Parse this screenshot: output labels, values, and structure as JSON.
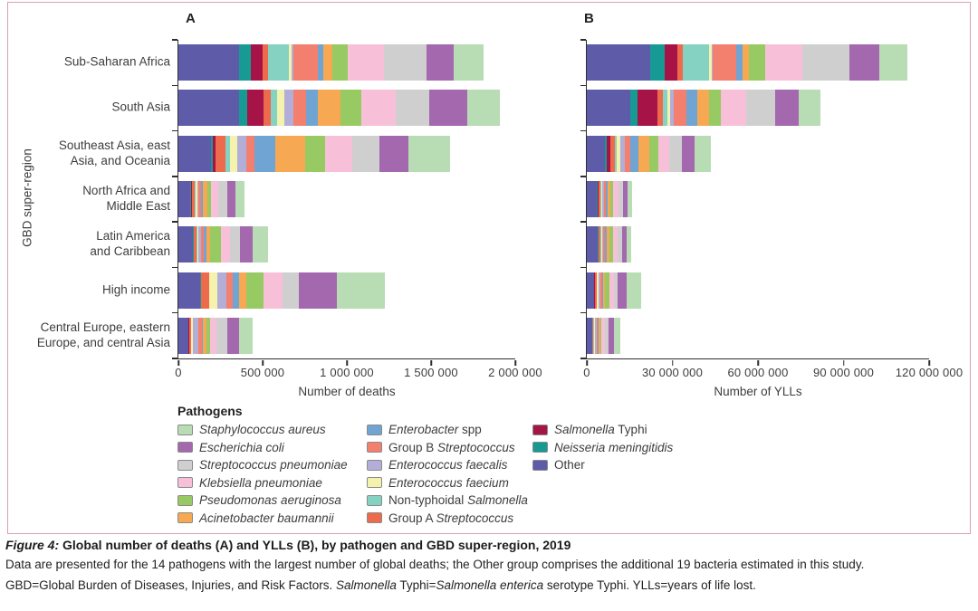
{
  "figure": {
    "panels": {
      "a_label": "A",
      "b_label": "B"
    },
    "y_axis_title": "GBD super-region",
    "legend_title": "Pathogens"
  },
  "caption": {
    "label": "Figure 4:",
    "title": " Global number of deaths (A) and YLLs (B), by pathogen and GBD super-region, 2019",
    "line2": "Data are presented for the 14 pathogens with the largest number of global deaths; the Other group comprises the additional 19 bacteria estimated in this study.",
    "line3_parts": [
      {
        "t": "GBD=Global Burden of Diseases, Injuries, and Risk Factors. ",
        "i": false
      },
      {
        "t": "Salmonella",
        "i": true
      },
      {
        "t": " Typhi=",
        "i": false
      },
      {
        "t": "Salmonella enterica",
        "i": true
      },
      {
        "t": " serotype Typhi. YLLs=years of life lost.",
        "i": false
      }
    ]
  },
  "legend": {
    "position": "bottom",
    "columns": [
      [
        {
          "parts": [
            {
              "t": "Staphylococcus aureus",
              "i": true
            }
          ],
          "color": "#b8dcb4"
        },
        {
          "parts": [
            {
              "t": "Escherichia coli",
              "i": true
            }
          ],
          "color": "#a468af"
        },
        {
          "parts": [
            {
              "t": "Streptococcus pneumoniae",
              "i": true
            }
          ],
          "color": "#cfcfcf"
        },
        {
          "parts": [
            {
              "t": "Klebsiella pneumoniae",
              "i": true
            }
          ],
          "color": "#f8c0d8"
        },
        {
          "parts": [
            {
              "t": "Pseudomonas aeruginosa",
              "i": true
            }
          ],
          "color": "#97ca62"
        },
        {
          "parts": [
            {
              "t": "Acinetobacter baumannii",
              "i": true
            }
          ],
          "color": "#f6a952"
        }
      ],
      [
        {
          "parts": [
            {
              "t": "Enterobacter",
              "i": true
            },
            {
              "t": " spp",
              "i": false
            }
          ],
          "color": "#70a4d2"
        },
        {
          "parts": [
            {
              "t": "Group B ",
              "i": false
            },
            {
              "t": "Streptococcus",
              "i": true
            }
          ],
          "color": "#f3806e"
        },
        {
          "parts": [
            {
              "t": "Enterococcus faecalis",
              "i": true
            }
          ],
          "color": "#b2aed8"
        },
        {
          "parts": [
            {
              "t": "Enterococcus faecium",
              "i": true
            }
          ],
          "color": "#f4f2ac"
        },
        {
          "parts": [
            {
              "t": "Non-typhoidal ",
              "i": false
            },
            {
              "t": "Salmonella",
              "i": true
            }
          ],
          "color": "#85d2c3"
        },
        {
          "parts": [
            {
              "t": "Group A ",
              "i": false
            },
            {
              "t": "Streptococcus",
              "i": true
            }
          ],
          "color": "#ee6a4d"
        }
      ],
      [
        {
          "parts": [
            {
              "t": "Salmonella",
              "i": true
            },
            {
              "t": " Typhi",
              "i": false
            }
          ],
          "color": "#a61347"
        },
        {
          "parts": [
            {
              "t": "Neisseria meningitidis",
              "i": true
            }
          ],
          "color": "#189a94"
        },
        {
          "parts": [
            {
              "t": "Other",
              "i": false
            }
          ],
          "color": "#5e5ba8"
        }
      ]
    ]
  },
  "chart_data": [
    {
      "type": "bar",
      "stacked": true,
      "orientation": "horizontal",
      "title": "A",
      "xlabel": "Number of deaths",
      "ylabel": "GBD super-region",
      "xlim": [
        0,
        2000000
      ],
      "grid": false,
      "xticks": [
        {
          "value": 0,
          "label": "0"
        },
        {
          "value": 500000,
          "label": "500 000"
        },
        {
          "value": 1000000,
          "label": "1 000 000"
        },
        {
          "value": 1500000,
          "label": "1 500 000"
        },
        {
          "value": 2000000,
          "label": "2 000 000"
        }
      ],
      "categories": [
        "Sub-Saharan Africa",
        "South Asia",
        "Southeast Asia, east Asia, and Oceania",
        "North Africa and Middle East",
        "Latin America and Caribbean",
        "High income",
        "Central Europe, eastern Europe, and central Asia"
      ],
      "categories_display": [
        [
          "Sub-Saharan Africa"
        ],
        [
          "South Asia"
        ],
        [
          "Southeast Asia, east",
          "Asia, and Oceania"
        ],
        [
          "North Africa and",
          "Middle East"
        ],
        [
          "Latin America",
          "and Caribbean"
        ],
        [
          "High income"
        ],
        [
          "Central Europe, eastern",
          "Europe, and central Asia"
        ]
      ],
      "series": [
        {
          "name": "Other",
          "color": "#5e5ba8",
          "values": [
            359000,
            359000,
            192000,
            72000,
            84000,
            131000,
            59000
          ]
        },
        {
          "name": "Neisseria meningitidis",
          "color": "#189a94",
          "values": [
            71000,
            48000,
            14000,
            5000,
            5000,
            3000,
            2000
          ]
        },
        {
          "name": "Salmonella Typhi",
          "color": "#a61347",
          "values": [
            68000,
            98000,
            16000,
            5000,
            4000,
            2000,
            1000
          ]
        },
        {
          "name": "Group A Streptococcus",
          "color": "#ee6a4d",
          "values": [
            34000,
            45000,
            59000,
            16000,
            15000,
            45000,
            11000
          ]
        },
        {
          "name": "Non-typhoidal Salmonella",
          "color": "#85d2c3",
          "values": [
            122000,
            36000,
            23000,
            5000,
            6000,
            3000,
            2000
          ]
        },
        {
          "name": "Enterococcus faecium",
          "color": "#f4f2ac",
          "values": [
            18000,
            41000,
            48000,
            8000,
            7000,
            48000,
            13000
          ]
        },
        {
          "name": "Enterococcus faecalis",
          "color": "#b2aed8",
          "values": [
            12000,
            57000,
            50000,
            8000,
            12000,
            54000,
            32000
          ]
        },
        {
          "name": "Group B Streptococcus",
          "color": "#f3806e",
          "values": [
            143000,
            72000,
            52000,
            16000,
            18000,
            36000,
            18000
          ]
        },
        {
          "name": "Enterobacter spp",
          "color": "#70a4d2",
          "values": [
            36000,
            72000,
            122000,
            11000,
            16000,
            36000,
            10000
          ]
        },
        {
          "name": "Acinetobacter baumannii",
          "color": "#f6a952",
          "values": [
            54000,
            134000,
            179000,
            25000,
            24000,
            45000,
            18000
          ]
        },
        {
          "name": "Pseudomonas aeruginosa",
          "color": "#97ca62",
          "values": [
            90000,
            125000,
            117000,
            25000,
            60000,
            104000,
            23000
          ]
        },
        {
          "name": "Klebsiella pneumoniae",
          "color": "#f8c0d8",
          "values": [
            215000,
            206000,
            161000,
            40000,
            55000,
            111000,
            39000
          ]
        },
        {
          "name": "Streptococcus pneumoniae",
          "color": "#cfcfcf",
          "values": [
            251000,
            197000,
            161000,
            55000,
            60000,
            98000,
            63000
          ]
        },
        {
          "name": "Escherichia coli",
          "color": "#a468af",
          "values": [
            161000,
            224000,
            170000,
            50000,
            75000,
            224000,
            72000
          ]
        },
        {
          "name": "Staphylococcus aureus",
          "color": "#b8dcb4",
          "values": [
            177000,
            197000,
            251000,
            50000,
            90000,
            287000,
            81000
          ]
        }
      ]
    },
    {
      "type": "bar",
      "stacked": true,
      "orientation": "horizontal",
      "title": "B",
      "xlabel": "Number of YLLs",
      "ylabel": "GBD super-region",
      "xlim": [
        0,
        120000000
      ],
      "grid": false,
      "xticks": [
        {
          "value": 0,
          "label": "0"
        },
        {
          "value": 30000000,
          "label": "30 000 000"
        },
        {
          "value": 60000000,
          "label": "60 000 000"
        },
        {
          "value": 90000000,
          "label": "90 000 000"
        },
        {
          "value": 120000000,
          "label": "120 000 000"
        }
      ],
      "categories": [
        "Sub-Saharan Africa",
        "South Asia",
        "Southeast Asia, east Asia, and Oceania",
        "North Africa and Middle East",
        "Latin America and Caribbean",
        "High income",
        "Central Europe, eastern Europe, and central Asia"
      ],
      "series": [
        {
          "name": "Other",
          "color": "#5e5ba8",
          "values": [
            22100000,
            15100000,
            6300000,
            3500000,
            3800000,
            2500000,
            1800000
          ]
        },
        {
          "name": "Neisseria meningitidis",
          "color": "#189a94",
          "values": [
            5100000,
            2800000,
            800000,
            300000,
            250000,
            150000,
            100000
          ]
        },
        {
          "name": "Salmonella Typhi",
          "color": "#a61347",
          "values": [
            4700000,
            6900000,
            1300000,
            400000,
            200000,
            100000,
            50000
          ]
        },
        {
          "name": "Group A Streptococcus",
          "color": "#ee6a4d",
          "values": [
            1600000,
            1800000,
            1400000,
            700000,
            600000,
            700000,
            400000
          ]
        },
        {
          "name": "Non-typhoidal Salmonella",
          "color": "#85d2c3",
          "values": [
            9300000,
            1800000,
            700000,
            300000,
            250000,
            100000,
            100000
          ]
        },
        {
          "name": "Enterococcus faecium",
          "color": "#f4f2ac",
          "values": [
            900000,
            800000,
            1400000,
            300000,
            200000,
            600000,
            300000
          ]
        },
        {
          "name": "Enterococcus faecalis",
          "color": "#b2aed8",
          "values": [
            600000,
            1300000,
            1400000,
            400000,
            400000,
            700000,
            600000
          ]
        },
        {
          "name": "Group B Streptococcus",
          "color": "#f3806e",
          "values": [
            8200000,
            4500000,
            2100000,
            900000,
            700000,
            500000,
            400000
          ]
        },
        {
          "name": "Enterobacter spp",
          "color": "#70a4d2",
          "values": [
            2100000,
            3700000,
            2800000,
            600000,
            600000,
            500000,
            400000
          ]
        },
        {
          "name": "Acinetobacter baumannii",
          "color": "#f6a952",
          "values": [
            2300000,
            4200000,
            3700000,
            1000000,
            800000,
            600000,
            500000
          ]
        },
        {
          "name": "Pseudomonas aeruginosa",
          "color": "#97ca62",
          "values": [
            5600000,
            4200000,
            3200000,
            900000,
            1500000,
            1400000,
            600000
          ]
        },
        {
          "name": "Klebsiella pneumoniae",
          "color": "#f8c0d8",
          "values": [
            13200000,
            8900000,
            3700000,
            1800000,
            1600000,
            1600000,
            1100000
          ]
        },
        {
          "name": "Streptococcus pneumoniae",
          "color": "#cfcfcf",
          "values": [
            16300000,
            10000000,
            4700000,
            1700000,
            1500000,
            1300000,
            1400000
          ]
        },
        {
          "name": "Escherichia coli",
          "color": "#a468af",
          "values": [
            10500000,
            8400000,
            4200000,
            1500000,
            1600000,
            3200000,
            1700000
          ]
        },
        {
          "name": "Staphylococcus aureus",
          "color": "#b8dcb4",
          "values": [
            10000000,
            7400000,
            5800000,
            1500000,
            1600000,
            5000000,
            2200000
          ]
        }
      ]
    }
  ]
}
